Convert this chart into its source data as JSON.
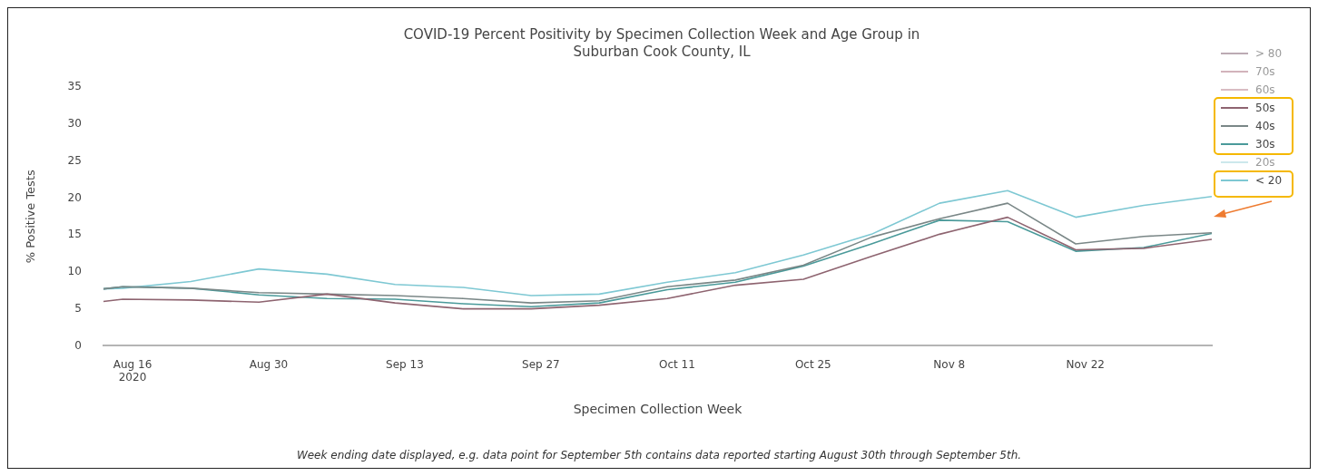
{
  "chart_data": {
    "type": "line",
    "title": "COVID-19 Percent Positivity by Specimen Collection Week and Age Group in Suburban Cook County, IL",
    "xlabel": "Specimen Collection Week",
    "ylabel": "% Positive Tests",
    "x": [
      "2020-08-13",
      "2020-08-15",
      "2020-08-22",
      "2020-08-29",
      "2020-09-05",
      "2020-09-12",
      "2020-09-19",
      "2020-09-26",
      "2020-10-03",
      "2020-10-10",
      "2020-10-17",
      "2020-10-24",
      "2020-10-31",
      "2020-11-07",
      "2020-11-14",
      "2020-11-21",
      "2020-11-28",
      "2020-12-05"
    ],
    "series": [
      {
        "name": "> 80",
        "color": "#bcaab3",
        "values": [
          null,
          null,
          null,
          null,
          null,
          null,
          null,
          null,
          null,
          null,
          null,
          null,
          null,
          null,
          null,
          null,
          null,
          null
        ]
      },
      {
        "name": "70s",
        "color": "#d2b3bb",
        "values": [
          null,
          null,
          null,
          null,
          null,
          null,
          null,
          null,
          null,
          null,
          null,
          null,
          null,
          null,
          null,
          null,
          null,
          null
        ]
      },
      {
        "name": "60s",
        "color": "#d9bcc3",
        "values": [
          null,
          null,
          null,
          null,
          null,
          null,
          null,
          null,
          null,
          null,
          null,
          null,
          null,
          null,
          null,
          null,
          null,
          null
        ]
      },
      {
        "name": "50s",
        "color": "#8e6470",
        "values": [
          6.0,
          6.3,
          6.2,
          5.9,
          7.0,
          5.8,
          5.0,
          5.0,
          5.5,
          6.4,
          8.2,
          9.0,
          12.1,
          15.1,
          17.4,
          13.0,
          13.2,
          14.4
        ]
      },
      {
        "name": "40s",
        "color": "#7a8787",
        "values": [
          7.7,
          8.0,
          7.8,
          7.2,
          7.0,
          6.8,
          6.4,
          5.8,
          6.1,
          8.0,
          8.9,
          10.9,
          14.7,
          17.2,
          19.3,
          13.8,
          14.8,
          15.3
        ]
      },
      {
        "name": "30s",
        "color": "#4a9a9a",
        "values": [
          7.7,
          8.0,
          7.8,
          6.9,
          6.4,
          6.3,
          5.7,
          5.3,
          5.8,
          7.6,
          8.6,
          10.8,
          13.8,
          17.0,
          16.8,
          12.8,
          13.3,
          15.2
        ]
      },
      {
        "name": "20s",
        "color": "#cce8ec",
        "values": [
          null,
          null,
          null,
          null,
          null,
          null,
          null,
          null,
          null,
          null,
          null,
          null,
          null,
          null,
          null,
          null,
          null,
          null
        ]
      },
      {
        "name": "< 20",
        "color": "#7ec8d3",
        "values": [
          7.7,
          7.8,
          8.7,
          10.4,
          9.7,
          8.3,
          7.9,
          6.8,
          7.0,
          8.6,
          9.9,
          12.3,
          15.1,
          19.3,
          21.0,
          17.4,
          19.0,
          20.2
        ]
      }
    ],
    "xlim": [
      "2020-08-13",
      "2020-12-05"
    ],
    "xticks": [
      {
        "value": "2020-08-16",
        "label": "Aug 16\n2020"
      },
      {
        "value": "2020-08-30",
        "label": "Aug 30"
      },
      {
        "value": "2020-09-13",
        "label": "Sep 13"
      },
      {
        "value": "2020-09-27",
        "label": "Sep 27"
      },
      {
        "value": "2020-10-11",
        "label": "Oct 11"
      },
      {
        "value": "2020-10-25",
        "label": "Oct 25"
      },
      {
        "value": "2020-11-08",
        "label": "Nov 8"
      },
      {
        "value": "2020-11-22",
        "label": "Nov 22"
      }
    ],
    "ylim": [
      0,
      35
    ],
    "yticks": [
      0,
      5,
      10,
      15,
      20,
      25,
      30,
      35
    ],
    "grid": false,
    "legend": "top right",
    "marker": "none",
    "line_style": "solid",
    "annotations": [
      "Week ending date displayed, e.g. data point for September 5th contains data reported starting August 30th through September 5th."
    ]
  }
}
